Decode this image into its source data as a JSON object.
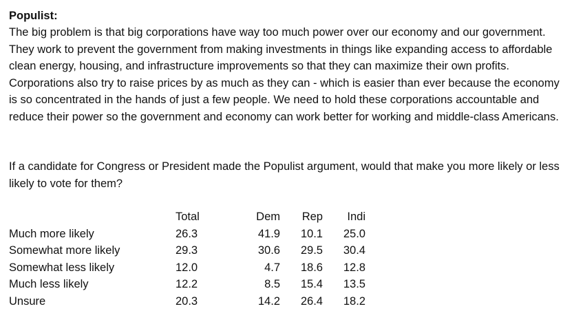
{
  "heading": "Populist:",
  "argument": "The big problem is that big corporations have way too much power over our economy and our government. They work to prevent the government from making investments in things like expanding access to affordable clean energy, housing, and infrastructure improvements so that they can maximize their own profits. Corporations also try to raise prices by as much as they can - which is easier than ever because the economy is so concentrated in the hands of just a few people. We need to hold these corporations accountable and reduce their power so the government and economy can work better for working and middle-class Americans.",
  "question": "If a candidate for Congress or President made the Populist argument, would that make you more likely or less likely to vote for them?",
  "table": {
    "headers": {
      "label": "",
      "total": "Total",
      "dem": "Dem",
      "rep": "Rep",
      "indi": "Indi"
    },
    "rows": [
      {
        "label": "Much more likely",
        "total": "26.3",
        "dem": "41.9",
        "rep": "10.1",
        "indi": "25.0"
      },
      {
        "label": "Somewhat more likely",
        "total": "29.3",
        "dem": "30.6",
        "rep": "29.5",
        "indi": "30.4"
      },
      {
        "label": "Somewhat less likely",
        "total": "12.0",
        "dem": "4.7",
        "rep": "18.6",
        "indi": "12.8"
      },
      {
        "label": "Much less likely",
        "total": "12.2",
        "dem": "8.5",
        "rep": "15.4",
        "indi": "13.5"
      },
      {
        "label": "Unsure",
        "total": "20.3",
        "dem": "14.2",
        "rep": "26.4",
        "indi": "18.2"
      }
    ]
  }
}
